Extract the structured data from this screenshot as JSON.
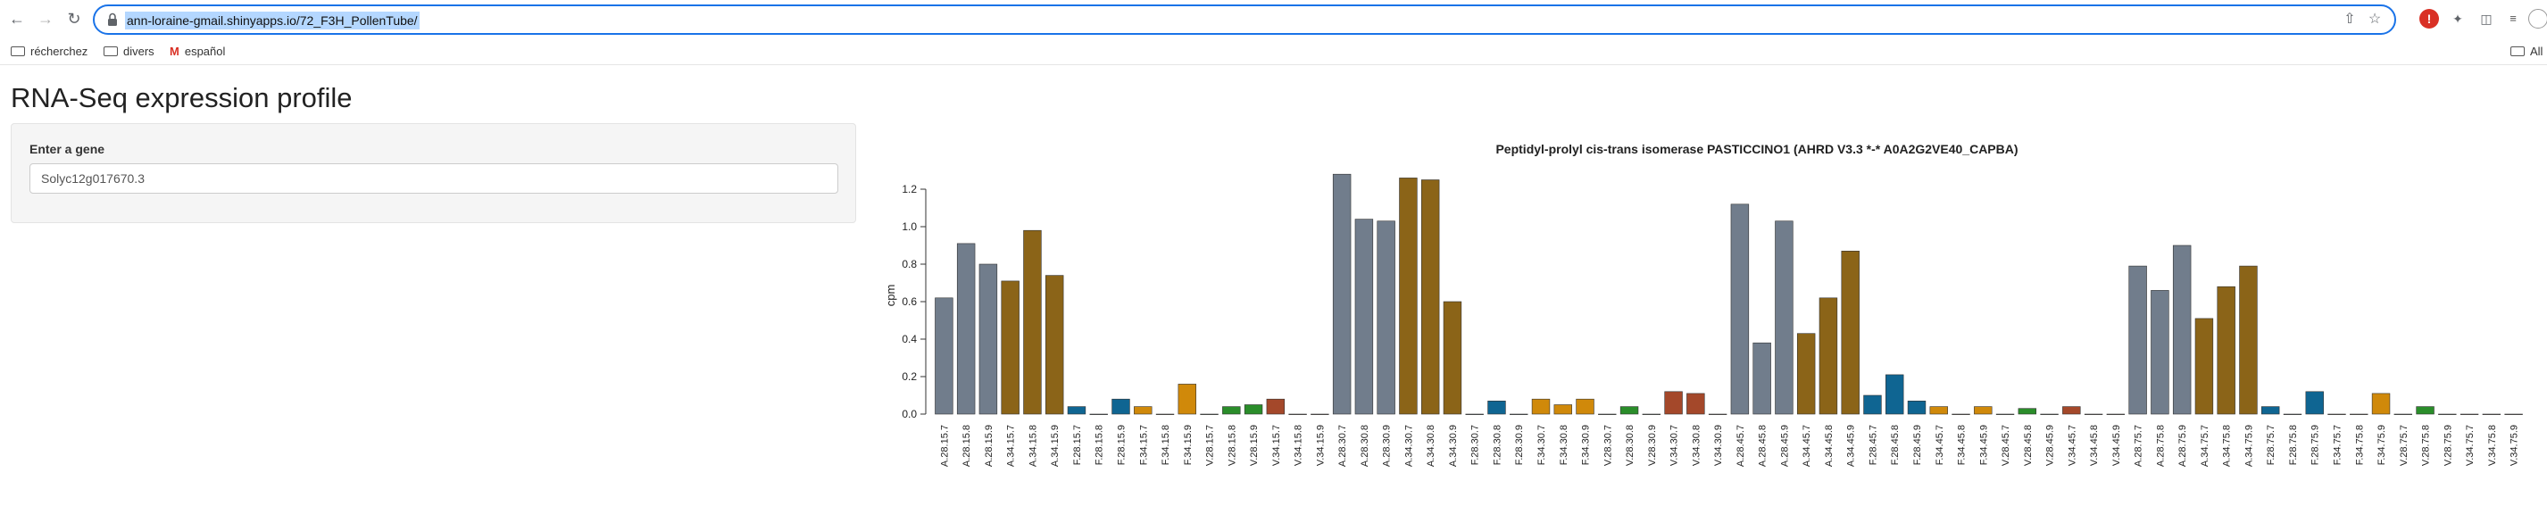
{
  "browser": {
    "url": "ann-loraine-gmail.shinyapps.io/72_F3H_PollenTube/",
    "bookmarks": [
      "récherchez",
      "divers",
      "español"
    ],
    "all_bookmarks": "All"
  },
  "app": {
    "title": "RNA-Seq expression profile",
    "gene_label": "Enter a gene",
    "gene_value": "Solyc12g017670.3"
  },
  "colors": {
    "slate": "#717d8c",
    "olive": "#8b6418",
    "teal": "#0f6592",
    "gold": "#d0890a",
    "green": "#2a8d2a",
    "rust": "#a4482a",
    "highlight": "#b4d7ff",
    "focus": "#1a73e8"
  },
  "chart_data": {
    "type": "bar",
    "title": "Peptidyl-prolyl cis-trans isomerase PASTICCINO1 (AHRD V3.3 *-* A0A2G2VE40_CAPBA)",
    "xlabel": "",
    "ylabel": "cpm",
    "ylim": [
      0,
      1.2
    ],
    "yticks": [
      "0.0",
      "0.2",
      "0.4",
      "0.6",
      "0.8",
      "1.0",
      "1.2"
    ],
    "categories": [
      "A.28.15.7",
      "A.28.15.8",
      "A.28.15.9",
      "A.34.15.7",
      "A.34.15.8",
      "A.34.15.9",
      "F.28.15.7",
      "F.28.15.8",
      "F.28.15.9",
      "F.34.15.7",
      "F.34.15.8",
      "F.34.15.9",
      "V.28.15.7",
      "V.28.15.8",
      "V.28.15.9",
      "V.34.15.7",
      "V.34.15.8",
      "V.34.15.9",
      "A.28.30.7",
      "A.28.30.8",
      "A.28.30.9",
      "A.34.30.7",
      "A.34.30.8",
      "A.34.30.9",
      "F.28.30.7",
      "F.28.30.8",
      "F.28.30.9",
      "F.34.30.7",
      "F.34.30.8",
      "F.34.30.9",
      "V.28.30.7",
      "V.28.30.8",
      "V.28.30.9",
      "V.34.30.7",
      "V.34.30.8",
      "V.34.30.9",
      "A.28.45.7",
      "A.28.45.8",
      "A.28.45.9",
      "A.34.45.7",
      "A.34.45.8",
      "A.34.45.9",
      "F.28.45.7",
      "F.28.45.8",
      "F.28.45.9",
      "F.34.45.7",
      "F.34.45.8",
      "F.34.45.9",
      "V.28.45.7",
      "V.28.45.8",
      "V.28.45.9",
      "V.34.45.7",
      "V.34.45.8",
      "V.34.45.9",
      "A.28.75.7",
      "A.28.75.8",
      "A.28.75.9",
      "A.34.75.7",
      "A.34.75.8",
      "A.34.75.9",
      "F.28.75.7",
      "F.28.75.8",
      "F.28.75.9",
      "F.34.75.7",
      "F.34.75.8",
      "F.34.75.9",
      "V.28.75.7",
      "V.28.75.8",
      "V.28.75.9",
      "V.34.75.7",
      "V.34.75.8",
      "V.34.75.9"
    ],
    "values": [
      0.62,
      0.91,
      0.8,
      0.71,
      0.98,
      0.74,
      0.04,
      0.0,
      0.08,
      0.04,
      0.0,
      0.16,
      0.0,
      0.04,
      0.05,
      0.08,
      0.0,
      0.0,
      1.28,
      1.04,
      1.03,
      1.26,
      1.25,
      0.6,
      0.0,
      0.07,
      0.0,
      0.08,
      0.05,
      0.08,
      0.0,
      0.04,
      0.0,
      0.12,
      0.11,
      0.0,
      1.12,
      0.38,
      1.03,
      0.43,
      0.62,
      0.87,
      0.1,
      0.21,
      0.07,
      0.04,
      0.0,
      0.04,
      0.0,
      0.03,
      0.0,
      0.04,
      0.0,
      0.0,
      0.79,
      0.66,
      0.9,
      0.51,
      0.68,
      0.79,
      0.04,
      0.0,
      0.12,
      0.0,
      0.0,
      0.11,
      0.0,
      0.04,
      0.0,
      0.0,
      0.0,
      0.0
    ]
  }
}
